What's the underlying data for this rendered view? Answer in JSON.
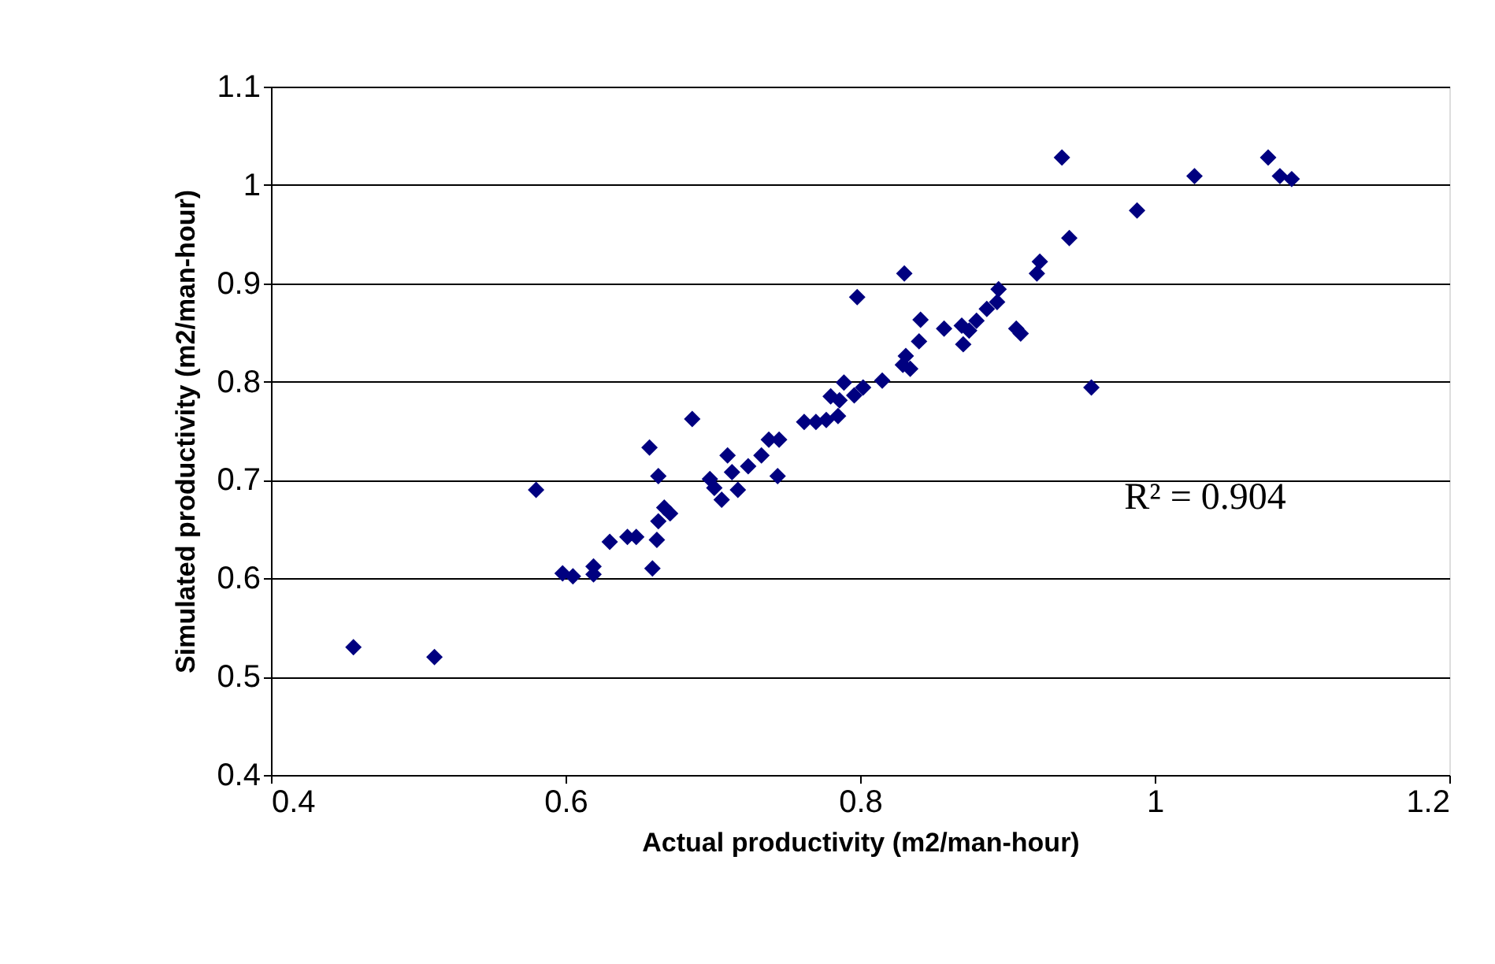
{
  "chart_data": {
    "type": "scatter",
    "xlabel": "Actual productivity (m2/man-hour)",
    "ylabel": "Simulated productivity (m2/man-hour)",
    "xlim": [
      0.4,
      1.2
    ],
    "xticks": [
      0.4,
      0.6,
      0.8,
      {
        "value": 1,
        "label": "1"
      },
      1.2
    ],
    "ylim": [
      0.4,
      1.1
    ],
    "yticks": [
      0.4,
      0.5,
      0.6,
      0.7,
      0.8,
      0.9,
      {
        "value": 1,
        "label": "1"
      },
      1.1
    ],
    "grid": "y",
    "marker": "diamond",
    "annotations": [
      "R² = 0.904"
    ],
    "series": [
      {
        "color": "#000080",
        "x": [
          0.456,
          0.511,
          0.58,
          0.598,
          0.605,
          0.619,
          0.619,
          0.63,
          0.642,
          0.648,
          0.657,
          0.659,
          0.662,
          0.663,
          0.663,
          0.667,
          0.671,
          0.686,
          0.698,
          0.701,
          0.706,
          0.71,
          0.713,
          0.717,
          0.724,
          0.733,
          0.738,
          0.745,
          0.744,
          0.762,
          0.77,
          0.777,
          0.78,
          0.786,
          0.789,
          0.785,
          0.796,
          0.802,
          0.815,
          0.798,
          0.829,
          0.831,
          0.834,
          0.83,
          0.84,
          0.841,
          0.857,
          0.869,
          0.87,
          0.874,
          0.879,
          0.886,
          0.893,
          0.894,
          0.906,
          0.909,
          0.92,
          0.922,
          0.942,
          0.937,
          0.957,
          0.988,
          1.027,
          1.077,
          1.085,
          1.093
        ],
        "values": [
          0.53,
          0.52,
          0.69,
          0.605,
          0.602,
          0.612,
          0.604,
          0.637,
          0.642,
          0.642,
          0.733,
          0.61,
          0.639,
          0.658,
          0.704,
          0.672,
          0.666,
          0.762,
          0.701,
          0.692,
          0.68,
          0.725,
          0.708,
          0.69,
          0.714,
          0.725,
          0.741,
          0.741,
          0.704,
          0.759,
          0.759,
          0.761,
          0.785,
          0.781,
          0.799,
          0.765,
          0.786,
          0.794,
          0.801,
          0.886,
          0.817,
          0.826,
          0.813,
          0.91,
          0.841,
          0.863,
          0.854,
          0.857,
          0.838,
          0.852,
          0.862,
          0.874,
          0.881,
          0.894,
          0.854,
          0.849,
          0.91,
          0.922,
          0.946,
          1.028,
          0.794,
          0.974,
          1.009,
          1.028,
          1.009,
          1.006
        ]
      }
    ]
  }
}
